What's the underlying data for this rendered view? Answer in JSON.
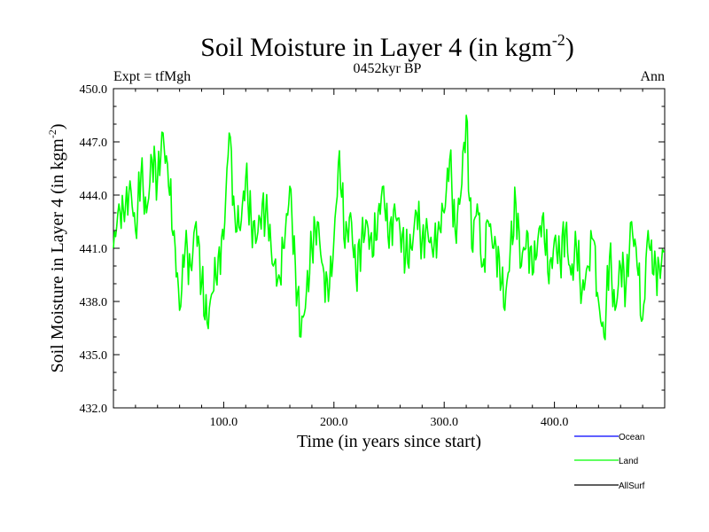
{
  "colors": {
    "ocean": "#0000ff",
    "land": "#00ff00",
    "allsurf": "#000000",
    "axis": "#000000",
    "background": "#ffffff"
  },
  "chart_data": {
    "type": "line",
    "title": "Soil Moisture in Layer 4 (in kgm",
    "title_sup": "-2",
    "title_tail": ")",
    "subtitle": "0452kyr BP",
    "left_label": "Expt = tfMgh",
    "right_label": "Ann",
    "xlabel": "Time (in years since start)",
    "ylabel": "Soil Moisture in Layer 4 (in kgm",
    "ylabel_sup": "-2",
    "ylabel_tail": ")",
    "xlim": [
      0,
      500
    ],
    "ylim": [
      432.0,
      450.0
    ],
    "xticks": [
      100,
      200,
      300,
      400
    ],
    "xtick_labels": [
      "100.0",
      "200.0",
      "300.0",
      "400.0"
    ],
    "yticks": [
      432,
      435,
      438,
      441,
      444,
      447,
      450
    ],
    "ytick_labels": [
      "432.0",
      "435.0",
      "438.0",
      "441.0",
      "444.0",
      "447.0",
      "450.0"
    ],
    "legend_position": "bottom-right",
    "series": [
      {
        "name": "Ocean",
        "color": "#0000ff",
        "x": [],
        "y": []
      },
      {
        "name": "Land",
        "color": "#00ff00",
        "x": [
          0,
          5,
          10,
          15,
          20,
          25,
          30,
          35,
          40,
          45,
          50,
          55,
          60,
          65,
          70,
          75,
          80,
          85,
          90,
          95,
          100,
          105,
          110,
          115,
          120,
          125,
          130,
          135,
          140,
          145,
          150,
          155,
          160,
          165,
          170,
          175,
          180,
          185,
          190,
          195,
          200,
          205,
          210,
          215,
          220,
          225,
          230,
          235,
          240,
          245,
          250,
          255,
          260,
          265,
          270,
          275,
          280,
          285,
          290,
          295,
          300,
          305,
          310,
          315,
          320,
          325,
          330,
          335,
          340,
          345,
          350,
          355,
          360,
          365,
          370,
          375,
          380,
          385,
          390,
          395,
          400,
          405,
          410,
          415,
          420,
          425,
          430,
          435,
          440,
          445,
          450,
          455,
          460,
          465,
          470,
          475,
          480,
          485,
          490,
          495,
          500
        ],
        "y": [
          441.0,
          443.5,
          442.5,
          444.8,
          442.0,
          445.2,
          443.0,
          446.0,
          445.0,
          447.5,
          444.5,
          442.0,
          437.5,
          441.0,
          440.0,
          442.5,
          439.0,
          436.8,
          438.5,
          440.5,
          441.5,
          447.5,
          443.0,
          442.0,
          445.0,
          442.5,
          441.5,
          443.5,
          442.5,
          440.0,
          439.5,
          441.0,
          444.5,
          440.0,
          436.0,
          438.5,
          441.0,
          442.5,
          440.0,
          438.0,
          441.5,
          446.5,
          441.0,
          443.0,
          439.5,
          441.5,
          442.5,
          440.5,
          443.0,
          444.5,
          441.0,
          443.5,
          442.0,
          440.5,
          441.0,
          443.0,
          441.5,
          442.0,
          440.5,
          442.5,
          443.0,
          446.0,
          442.0,
          444.0,
          448.5,
          441.0,
          443.5,
          440.0,
          442.5,
          441.0,
          440.5,
          437.5,
          441.0,
          443.5,
          440.0,
          442.0,
          439.5,
          441.5,
          443.0,
          439.0,
          441.5,
          440.5,
          442.0,
          439.5,
          441.0,
          438.5,
          440.0,
          441.5,
          438.0,
          436.0,
          440.5,
          437.5,
          440.0,
          439.0,
          442.5,
          440.0,
          437.0,
          442.0,
          439.5,
          440.0,
          440.8
        ]
      },
      {
        "name": "AllSurf",
        "color": "#000000",
        "x": [],
        "y": []
      }
    ]
  }
}
